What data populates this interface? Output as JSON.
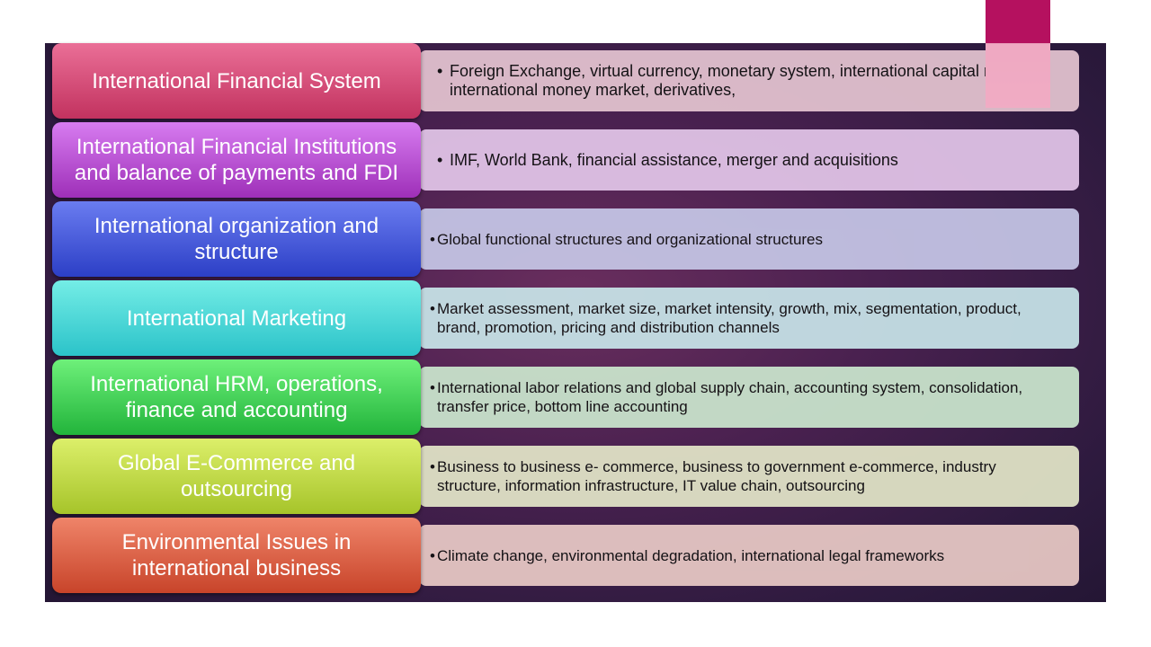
{
  "rows": [
    {
      "title": "International Financial System",
      "detail": "Foreign Exchange, virtual currency, monetary system, international capital market, international money market, derivatives,",
      "left_color_top": "#ea6f97",
      "left_color_bottom": "#c2325f",
      "right_color": "#e6c6d2"
    },
    {
      "title": "International Financial Institutions and balance of payments and FDI",
      "detail": "IMF, World Bank, financial assistance, merger and acquisitions",
      "left_color_top": "#d77cf0",
      "left_color_bottom": "#9e2fb8",
      "right_color": "#e4c7ea"
    },
    {
      "title": "International organization and structure",
      "detail": "Global functional structures and organizational structures",
      "left_color_top": "#6a7cf0",
      "left_color_bottom": "#2c3fc6",
      "right_color": "#c7c8e8"
    },
    {
      "title": "International Marketing",
      "detail": "Market assessment, market size, market intensity, growth, mix, segmentation, product, brand, promotion, pricing and distribution channels",
      "left_color_top": "#74ede6",
      "left_color_bottom": "#2bc3c9",
      "right_color": "#c9e6ea"
    },
    {
      "title": "International HRM, operations, finance and accounting",
      "detail": "International labor relations and global supply chain, accounting system, consolidation, transfer price, bottom line accounting",
      "left_color_top": "#6ef07a",
      "left_color_bottom": "#22b43b",
      "right_color": "#cce8cf"
    },
    {
      "title": "Global E-Commerce and outsourcing",
      "detail": "Business to business e- commerce, business to government e-commerce, industry structure, information infrastructure, IT value chain, outsourcing",
      "left_color_top": "#dcef6a",
      "left_color_bottom": "#a6c42a",
      "right_color": "#e4e7c9"
    },
    {
      "title": "Environmental Issues in international business",
      "detail": "Climate change, environmental degradation, international legal frameworks",
      "left_color_top": "#ef8469",
      "left_color_bottom": "#c8442a",
      "right_color": "#eacbc7"
    }
  ]
}
